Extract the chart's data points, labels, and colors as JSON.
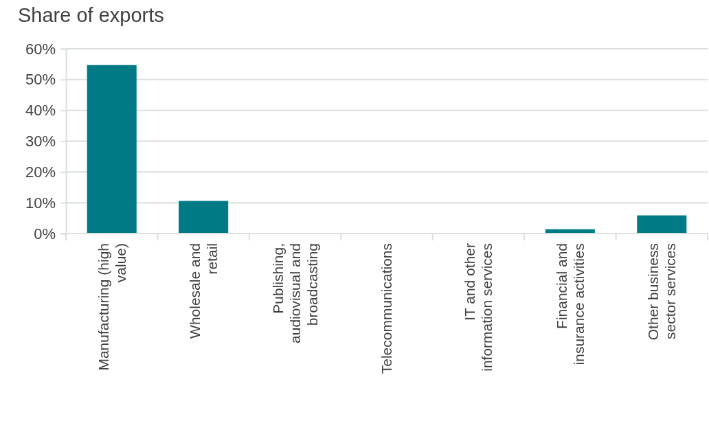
{
  "chart_data": {
    "type": "bar",
    "title": "Share of exports",
    "categories": [
      "Manufacturing (high value)",
      "Wholesale and retail",
      "Publishing, audiovisual and broadcasting",
      "Telecommunications",
      "IT and other information services",
      "Financial and insurance activities",
      "Other business sector services"
    ],
    "values": [
      54.7,
      10.6,
      0,
      0,
      0,
      1.4,
      5.9
    ],
    "color": "#007a84",
    "ylim": [
      0,
      60
    ],
    "yticks": [
      {
        "value": 0,
        "label": "0%"
      },
      {
        "value": 10,
        "label": "10%"
      },
      {
        "value": 20,
        "label": "20%"
      },
      {
        "value": 30,
        "label": "30%"
      },
      {
        "value": 40,
        "label": "40%"
      },
      {
        "value": 50,
        "label": "50%"
      },
      {
        "value": 60,
        "label": "60%"
      }
    ],
    "grid": "y"
  }
}
